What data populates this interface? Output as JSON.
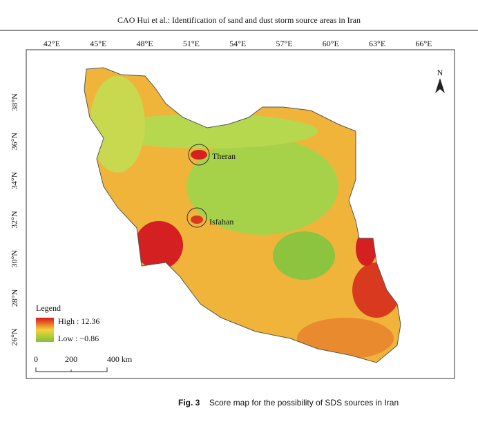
{
  "header": {
    "title": "CAO Hui et al.: Identification of sand and dust storm source areas in Iran"
  },
  "map": {
    "lon_labels": [
      "42°E",
      "45°E",
      "48°E",
      "51°E",
      "54°E",
      "57°E",
      "60°E",
      "63°E",
      "66°E"
    ],
    "lat_labels": [
      "38°N",
      "36°N",
      "34°N",
      "32°N",
      "30°N",
      "28°N",
      "26°N"
    ],
    "cities": [
      "Theran",
      "Isfahan"
    ],
    "north": "N",
    "legend": {
      "title": "Legend",
      "high": "High : 12.36",
      "low": "Low : −0.86"
    },
    "scale": [
      "0",
      "200",
      "400 km"
    ]
  },
  "caption": {
    "label": "Fig. 3",
    "text": "Score map for the possibility of SDS sources in Iran"
  }
}
